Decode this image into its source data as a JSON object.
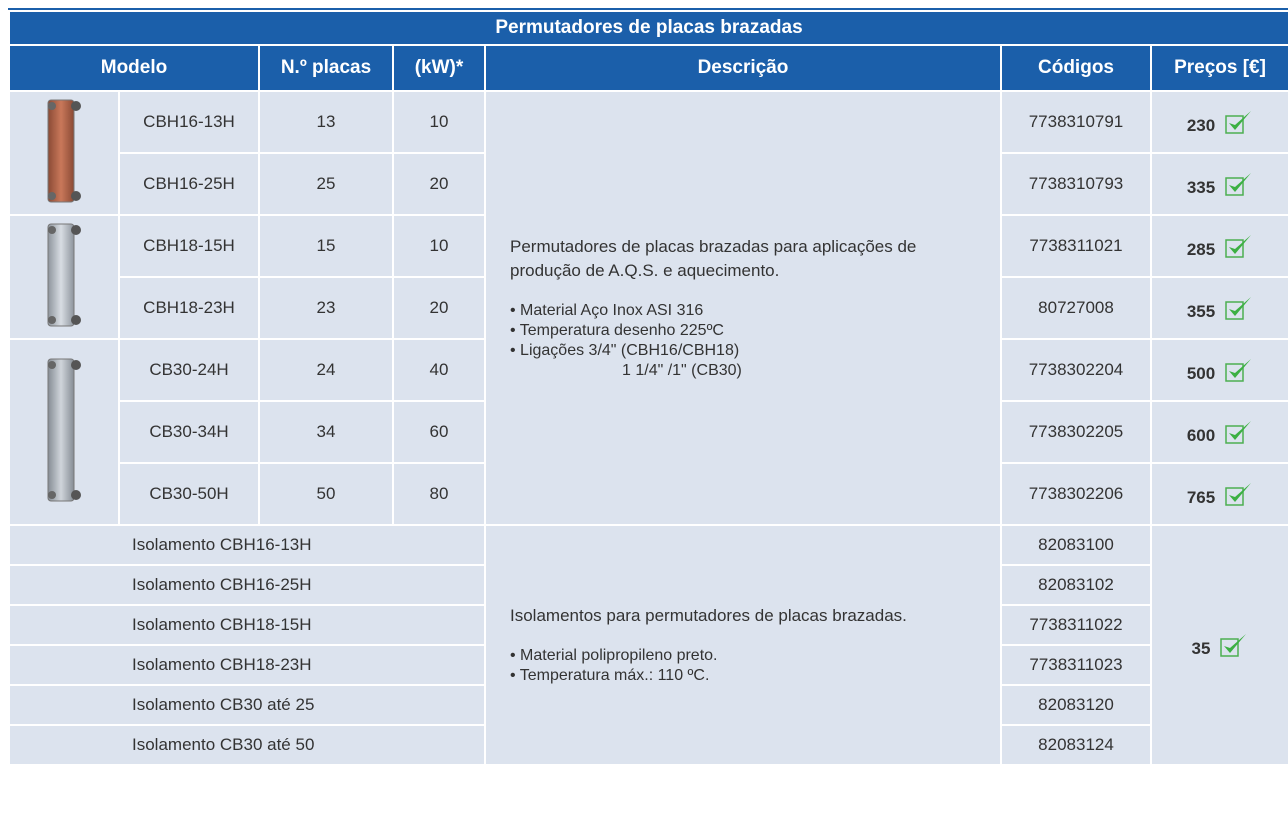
{
  "header": {
    "title": "Permutadores de placas brazadas",
    "columns": [
      "Modelo",
      "N.º placas",
      "(kW)*",
      "Descrição",
      "Códigos",
      "Preços [€]"
    ]
  },
  "products": {
    "rows": [
      [
        "CBH16-13H",
        "13",
        "10",
        "7738310791",
        "230"
      ],
      [
        "CBH16-25H",
        "25",
        "20",
        "7738310793",
        "335"
      ],
      [
        "CBH18-15H",
        "15",
        "10",
        "7738311021",
        "285"
      ],
      [
        "CBH18-23H",
        "23",
        "20",
        "80727008",
        "355"
      ],
      [
        "CB30-24H",
        "24",
        "40",
        "7738302204",
        "500"
      ],
      [
        "CB30-34H",
        "34",
        "60",
        "7738302205",
        "600"
      ],
      [
        "CB30-50H",
        "50",
        "80",
        "7738302206",
        "765"
      ]
    ],
    "description": {
      "intro": "Permutadores de placas brazadas para aplicações de produção de A.Q.S. e aquecimento.",
      "bullets": [
        "Material Aço Inox ASI 316",
        "Temperatura desenho 225ºC",
        "Ligações 3/4\" (CBH16/CBH18)"
      ],
      "continuation": "1 1/4\" /1\" (CB30)"
    }
  },
  "insulation": {
    "rows": [
      [
        "Isolamento CBH16-13H",
        "82083100"
      ],
      [
        "Isolamento CBH16-25H",
        "82083102"
      ],
      [
        "Isolamento CBH18-15H",
        "7738311022"
      ],
      [
        "Isolamento CBH18-23H",
        "7738311023"
      ],
      [
        "Isolamento CB30 até 25",
        "82083120"
      ],
      [
        "Isolamento CB30 até 50",
        "82083124"
      ]
    ],
    "description": {
      "intro": "Isolamentos para permutadores de placas brazadas.",
      "bullets": [
        "Material polipropileno preto.",
        "Temperatura máx.: 110 ºC."
      ]
    },
    "price": "35"
  }
}
